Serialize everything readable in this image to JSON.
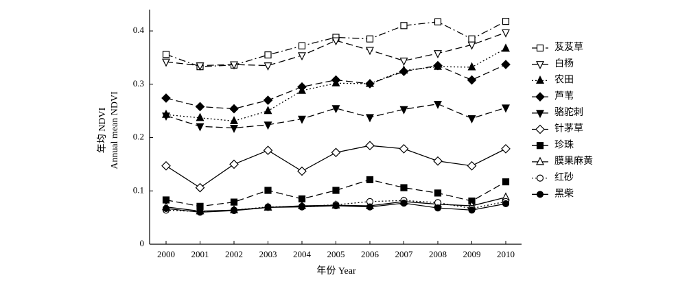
{
  "chart_data": {
    "type": "line",
    "x_label": "年份 Year",
    "y_label": [
      "年均 NDVI",
      "Annual mean NDVI"
    ],
    "categories": [
      "2000",
      "2001",
      "2002",
      "2003",
      "2004",
      "2005",
      "2006",
      "2007",
      "2008",
      "2009",
      "2010"
    ],
    "ylim": [
      0,
      0.44
    ],
    "yticks": [
      0,
      0.1,
      0.2,
      0.3,
      0.4
    ],
    "grid": false,
    "legend": "right",
    "series": [
      {
        "name": "芨芨草",
        "color": "#000000",
        "marker": "square-open",
        "dash": "dashdot",
        "values": [
          0.356,
          0.333,
          0.336,
          0.355,
          0.372,
          0.388,
          0.385,
          0.41,
          0.417,
          0.385,
          0.418
        ]
      },
      {
        "name": "白杨",
        "color": "#000000",
        "marker": "triangle-down-open",
        "dash": "dashed",
        "values": [
          0.342,
          0.335,
          0.337,
          0.335,
          0.354,
          0.382,
          0.364,
          0.344,
          0.358,
          0.374,
          0.397
        ]
      },
      {
        "name": "农田",
        "color": "#000000",
        "marker": "triangle-up-filled",
        "dash": "dotted",
        "values": [
          0.243,
          0.237,
          0.231,
          0.25,
          0.288,
          0.302,
          0.301,
          0.326,
          0.333,
          0.332,
          0.367
        ]
      },
      {
        "name": "芦苇",
        "color": "#000000",
        "marker": "diamond-filled",
        "dash": "dashed",
        "values": [
          0.274,
          0.258,
          0.254,
          0.27,
          0.295,
          0.308,
          0.301,
          0.324,
          0.335,
          0.308,
          0.337
        ]
      },
      {
        "name": "骆驼刺",
        "color": "#000000",
        "marker": "triangle-down-filled",
        "dash": "dashed",
        "values": [
          0.241,
          0.221,
          0.218,
          0.224,
          0.235,
          0.255,
          0.238,
          0.253,
          0.263,
          0.236,
          0.256
        ]
      },
      {
        "name": "针茅草",
        "color": "#000000",
        "marker": "diamond-open",
        "dash": "solid",
        "values": [
          0.147,
          0.106,
          0.15,
          0.176,
          0.137,
          0.172,
          0.185,
          0.179,
          0.156,
          0.147,
          0.179
        ]
      },
      {
        "name": "珍珠",
        "color": "#000000",
        "marker": "square-filled",
        "dash": "dashed",
        "values": [
          0.083,
          0.071,
          0.079,
          0.101,
          0.085,
          0.101,
          0.121,
          0.106,
          0.096,
          0.081,
          0.117
        ]
      },
      {
        "name": "膜果麻黄",
        "color": "#000000",
        "marker": "triangle-up-open",
        "dash": "solid",
        "values": [
          0.07,
          0.062,
          0.064,
          0.069,
          0.072,
          0.073,
          0.072,
          0.08,
          0.075,
          0.072,
          0.088
        ]
      },
      {
        "name": "红砂",
        "color": "#000000",
        "marker": "circle-open",
        "dash": "dotted",
        "values": [
          0.064,
          0.061,
          0.064,
          0.07,
          0.071,
          0.074,
          0.08,
          0.082,
          0.078,
          0.067,
          0.08
        ]
      },
      {
        "name": "黑柴",
        "color": "#000000",
        "marker": "circle-filled",
        "dash": "solid",
        "values": [
          0.067,
          0.06,
          0.063,
          0.069,
          0.07,
          0.072,
          0.07,
          0.077,
          0.068,
          0.064,
          0.076
        ]
      }
    ]
  }
}
